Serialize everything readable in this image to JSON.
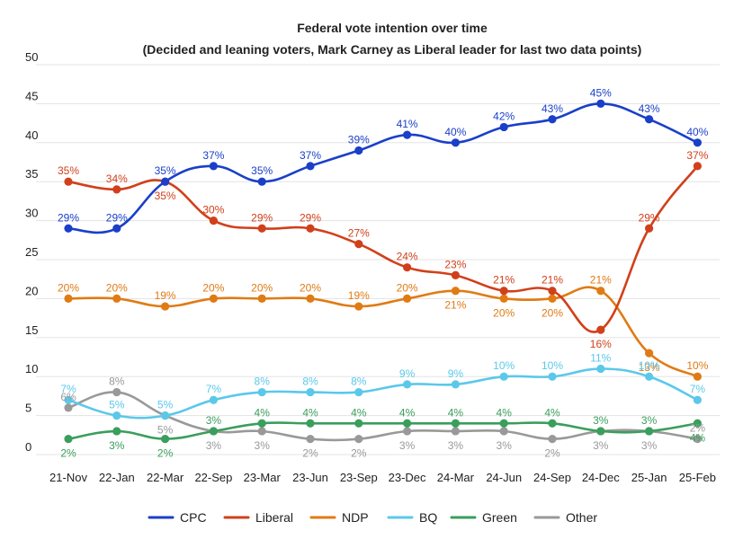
{
  "chart_data": {
    "type": "line",
    "title": "Federal vote intention over time",
    "subtitle": "(Decided and leaning voters, Mark Carney as Liberal leader for last two data points)",
    "xlabel": "",
    "ylabel": "",
    "ylim": [
      0,
      50
    ],
    "yticks": [
      0,
      5,
      10,
      15,
      20,
      25,
      30,
      35,
      40,
      45,
      50
    ],
    "grid": true,
    "legend": "bottom",
    "categories": [
      "21-Nov",
      "22-Jan",
      "22-Mar",
      "22-Sep",
      "23-Mar",
      "23-Jun",
      "23-Sep",
      "23-Dec",
      "24-Mar",
      "24-Jun",
      "24-Sep",
      "24-Dec",
      "25-Jan",
      "25-Feb"
    ],
    "series": [
      {
        "name": "CPC",
        "color": "#1a3fc9",
        "values": [
          29,
          29,
          35,
          37,
          35,
          37,
          39,
          41,
          40,
          42,
          43,
          45,
          43,
          40
        ],
        "labels": [
          "29%",
          "29%",
          "35%",
          "37%",
          "35%",
          "37%",
          "39%",
          "41%",
          "40%",
          "42%",
          "43%",
          "45%",
          "43%",
          "40%"
        ]
      },
      {
        "name": "Liberal",
        "color": "#d1401a",
        "values": [
          35,
          34,
          35,
          30,
          29,
          29,
          27,
          24,
          23,
          21,
          21,
          16,
          29,
          37
        ],
        "labels": [
          "35%",
          "34%",
          "35%",
          "30%",
          "29%",
          "29%",
          "27%",
          "24%",
          "23%",
          "21%",
          "21%",
          "16%",
          "29%",
          "37%"
        ]
      },
      {
        "name": "NDP",
        "color": "#e07b14",
        "values": [
          20,
          20,
          19,
          20,
          20,
          20,
          19,
          20,
          21,
          20,
          20,
          21,
          13,
          10
        ],
        "labels": [
          "20%",
          "20%",
          "19%",
          "20%",
          "20%",
          "20%",
          "19%",
          "20%",
          "21%",
          "20%",
          "20%",
          "21%",
          "13%",
          "10%"
        ]
      },
      {
        "name": "BQ",
        "color": "#5bc8ea",
        "values": [
          7,
          5,
          5,
          7,
          8,
          8,
          8,
          9,
          9,
          10,
          10,
          11,
          10,
          7
        ],
        "labels": [
          "7%",
          "5%",
          "5%",
          "7%",
          "8%",
          "8%",
          "8%",
          "9%",
          "9%",
          "10%",
          "10%",
          "11%",
          "10%",
          "7%"
        ]
      },
      {
        "name": "Green",
        "color": "#3a9e5c",
        "values": [
          2,
          3,
          2,
          3,
          4,
          4,
          4,
          4,
          4,
          4,
          4,
          3,
          3,
          4
        ],
        "labels": [
          "2%",
          "3%",
          "2%",
          "3%",
          "4%",
          "4%",
          "4%",
          "4%",
          "4%",
          "4%",
          "4%",
          "3%",
          "3%",
          "4%"
        ]
      },
      {
        "name": "Other",
        "color": "#999999",
        "values": [
          6,
          8,
          5,
          3,
          3,
          2,
          2,
          3,
          3,
          3,
          2,
          3,
          3,
          2
        ],
        "labels": [
          "6%",
          "8%",
          "5%",
          "3%",
          "3%",
          "2%",
          "2%",
          "3%",
          "3%",
          "3%",
          "2%",
          "3%",
          "3%",
          "2%"
        ]
      }
    ]
  }
}
